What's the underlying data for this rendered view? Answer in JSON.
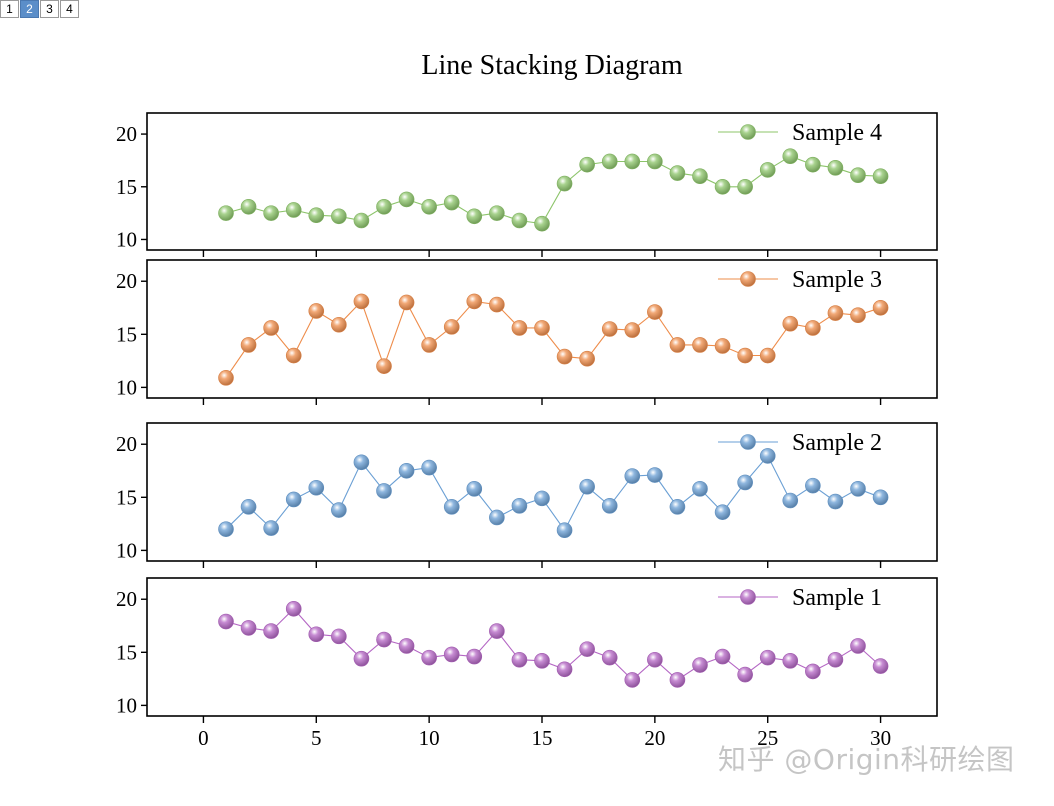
{
  "tabs": [
    {
      "label": "1",
      "active": false
    },
    {
      "label": "2",
      "active": true
    },
    {
      "label": "3",
      "active": false
    },
    {
      "label": "4",
      "active": false
    }
  ],
  "watermark": "知乎 @Origin科研绘图",
  "chart_data": {
    "type": "line",
    "title": "Line Stacking Diagram",
    "xlabel": "",
    "ylabel": "",
    "xlim": [
      -2.5,
      32.5
    ],
    "xticks": [
      0,
      5,
      10,
      15,
      20,
      25,
      30
    ],
    "ylim": [
      9,
      22
    ],
    "yticks": [
      10,
      15,
      20
    ],
    "x": [
      1,
      2,
      3,
      4,
      5,
      6,
      7,
      8,
      9,
      10,
      11,
      12,
      13,
      14,
      15,
      16,
      17,
      18,
      19,
      20,
      21,
      22,
      23,
      24,
      25,
      26,
      27,
      28,
      29,
      30
    ],
    "series": [
      {
        "name": "Sample 4",
        "color": "#8cc46a",
        "values": [
          12.5,
          13.1,
          12.5,
          12.8,
          12.3,
          12.2,
          11.8,
          13.1,
          13.8,
          13.1,
          13.5,
          12.2,
          12.5,
          11.8,
          11.5,
          15.3,
          17.1,
          17.4,
          17.4,
          17.4,
          16.3,
          16.0,
          15.0,
          15.0,
          16.6,
          17.9,
          17.1,
          16.8,
          16.1,
          16.0
        ]
      },
      {
        "name": "Sample 3",
        "color": "#ee8c4a",
        "values": [
          10.9,
          14.0,
          15.6,
          13.0,
          17.2,
          15.9,
          18.1,
          12.0,
          18.0,
          14.0,
          15.7,
          18.1,
          17.8,
          15.6,
          15.6,
          12.9,
          12.7,
          15.5,
          15.4,
          17.1,
          14.0,
          14.0,
          13.9,
          13.0,
          13.0,
          16.0,
          15.6,
          17.0,
          16.8,
          17.5
        ]
      },
      {
        "name": "Sample 2",
        "color": "#6a9fd4",
        "values": [
          12.0,
          14.1,
          12.1,
          14.8,
          15.9,
          13.8,
          18.3,
          15.6,
          17.5,
          17.8,
          14.1,
          15.8,
          13.1,
          14.2,
          14.9,
          11.9,
          16.0,
          14.2,
          17.0,
          17.1,
          14.1,
          15.8,
          13.6,
          16.4,
          18.9,
          14.7,
          16.1,
          14.6,
          15.8,
          15.0
        ]
      },
      {
        "name": "Sample 1",
        "color": "#b466c4",
        "values": [
          17.9,
          17.3,
          17.0,
          19.1,
          16.7,
          16.5,
          14.4,
          16.2,
          15.6,
          14.5,
          14.8,
          14.6,
          17.0,
          14.3,
          14.2,
          13.4,
          15.3,
          14.5,
          12.4,
          14.3,
          12.4,
          13.8,
          14.6,
          12.9,
          14.5,
          14.2,
          13.2,
          14.3,
          15.6,
          13.7
        ]
      }
    ]
  }
}
